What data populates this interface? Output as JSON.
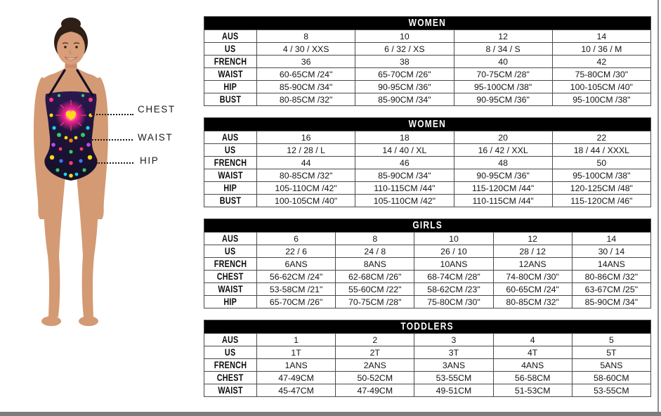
{
  "page": {
    "background": "#ffffff",
    "bottom_bar_color": "#7d7d7d",
    "right_border_color": "#8c8c8c",
    "table_header_bg": "#000000",
    "table_header_text": "#ffffff",
    "table_border_color": "#4a4a4a"
  },
  "figure": {
    "measurements": [
      {
        "label": "CHEST"
      },
      {
        "label": "WAIST"
      },
      {
        "label": "HIP"
      }
    ],
    "model_colors": {
      "skin": "#d39a74",
      "hair": "#2f2017",
      "swimsuit_base": "#1d1338",
      "swimsuit_burst": "#f0218f",
      "swimsuit_center": "#ffd818"
    }
  },
  "tables": [
    {
      "title": "WOMEN",
      "rows": [
        {
          "label": "AUS",
          "values": [
            "8",
            "10",
            "12",
            "14"
          ]
        },
        {
          "label": "US",
          "values": [
            "4 / 30 / XXS",
            "6 / 32 / XS",
            "8 / 34 / S",
            "10 / 36 / M"
          ]
        },
        {
          "label": "FRENCH",
          "values": [
            "36",
            "38",
            "40",
            "42"
          ]
        },
        {
          "label": "WAIST",
          "values": [
            "60-65CM /24\"",
            "65-70CM /26\"",
            "70-75CM /28\"",
            "75-80CM /30\""
          ]
        },
        {
          "label": "HIP",
          "values": [
            "85-90CM /34\"",
            "90-95CM /36\"",
            "95-100CM /38\"",
            "100-105CM /40\""
          ]
        },
        {
          "label": "BUST",
          "values": [
            "80-85CM /32\"",
            "85-90CM /34\"",
            "90-95CM /36\"",
            "95-100CM /38\""
          ]
        }
      ]
    },
    {
      "title": "WOMEN",
      "rows": [
        {
          "label": "AUS",
          "values": [
            "16",
            "18",
            "20",
            "22"
          ]
        },
        {
          "label": "US",
          "values": [
            "12 / 28 / L",
            "14 / 40 / XL",
            "16 / 42 / XXL",
            "18 / 44 / XXXL"
          ]
        },
        {
          "label": "FRENCH",
          "values": [
            "44",
            "46",
            "48",
            "50"
          ]
        },
        {
          "label": "WAIST",
          "values": [
            "80-85CM /32\"",
            "85-90CM /34\"",
            "90-95CM /36\"",
            "95-100CM /38\""
          ]
        },
        {
          "label": "HIP",
          "values": [
            "105-110CM /42\"",
            "110-115CM /44\"",
            "115-120CM /44\"",
            "120-125CM /48\""
          ]
        },
        {
          "label": "BUST",
          "values": [
            "100-105CM /40\"",
            "105-110CM /42\"",
            "110-115CM /44\"",
            "115-120CM /46\""
          ]
        }
      ]
    },
    {
      "title": "GIRLS",
      "rows": [
        {
          "label": "AUS",
          "values": [
            "6",
            "8",
            "10",
            "12",
            "14"
          ]
        },
        {
          "label": "US",
          "values": [
            "22 / 6",
            "24 / 8",
            "26 / 10",
            "28 / 12",
            "30 / 14"
          ]
        },
        {
          "label": "FRENCH",
          "values": [
            "6ANS",
            "8ANS",
            "10ANS",
            "12ANS",
            "14ANS"
          ]
        },
        {
          "label": "CHEST",
          "values": [
            "56-62CM /24\"",
            "62-68CM /26\"",
            "68-74CM /28\"",
            "74-80CM /30\"",
            "80-86CM /32\""
          ]
        },
        {
          "label": "WAIST",
          "values": [
            "53-58CM /21\"",
            "55-60CM /22\"",
            "58-62CM /23\"",
            "60-65CM /24\"",
            "63-67CM /25\""
          ]
        },
        {
          "label": "HIP",
          "values": [
            "65-70CM /26\"",
            "70-75CM /28\"",
            "75-80CM /30\"",
            "80-85CM /32\"",
            "85-90CM /34\""
          ]
        }
      ]
    },
    {
      "title": "TODDLERS",
      "rows": [
        {
          "label": "AUS",
          "values": [
            "1",
            "2",
            "3",
            "4",
            "5"
          ]
        },
        {
          "label": "US",
          "values": [
            "1T",
            "2T",
            "3T",
            "4T",
            "5T"
          ]
        },
        {
          "label": "FRENCH",
          "values": [
            "1ANS",
            "2ANS",
            "3ANS",
            "4ANS",
            "5ANS"
          ]
        },
        {
          "label": "CHEST",
          "values": [
            "47-49CM",
            "50-52CM",
            "53-55CM",
            "56-58CM",
            "58-60CM"
          ]
        },
        {
          "label": "WAIST",
          "values": [
            "45-47CM",
            "47-49CM",
            "49-51CM",
            "51-53CM",
            "53-55CM"
          ]
        }
      ]
    }
  ]
}
